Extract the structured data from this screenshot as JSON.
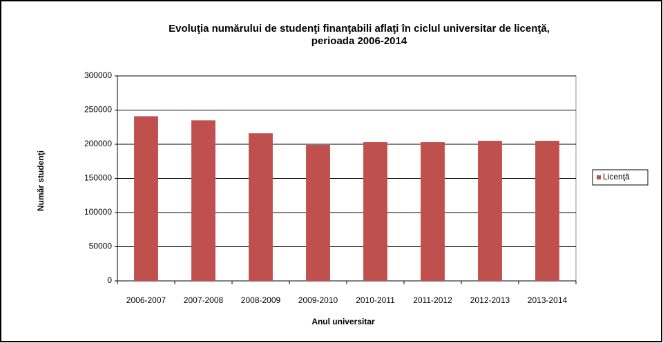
{
  "chart_data": {
    "type": "bar",
    "title": [
      "Evoluţia numărului de studenţi finanţabili aflaţi în ciclul universitar de licenţă,",
      "perioada 2006-2014"
    ],
    "x_label": "Anul universitar",
    "y_label": "Număr studenţi",
    "categories": [
      "2006-2007",
      "2007-2008",
      "2008-2009",
      "2009-2010",
      "2010-2011",
      "2011-2012",
      "2012-2013",
      "2013-2014"
    ],
    "series": [
      {
        "name": "Licenţă",
        "color": "#c0504d",
        "values": [
          241000,
          235000,
          216000,
          199000,
          203000,
          203000,
          205000,
          205000
        ]
      }
    ],
    "ylim": [
      0,
      300000
    ],
    "yticks": [
      0,
      50000,
      100000,
      150000,
      200000,
      250000,
      300000
    ],
    "grid": true,
    "legend": "right"
  }
}
